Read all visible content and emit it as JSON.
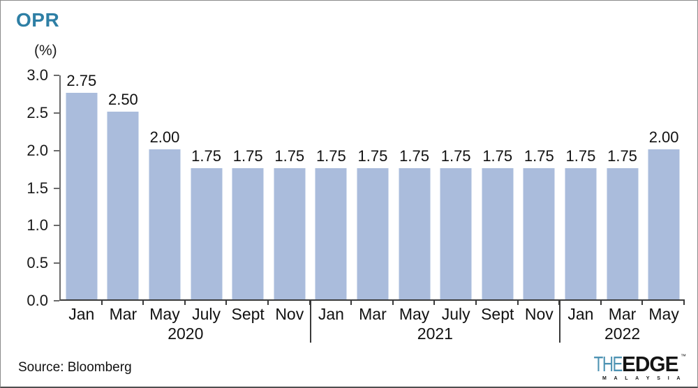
{
  "header": {
    "title": "OPR",
    "unit_label": "(%)"
  },
  "footer": {
    "source": "Source: Bloomberg",
    "logo": {
      "the": "THE",
      "edge": "EDGE",
      "trademark": "™",
      "malaysia": "M A L A Y S I A"
    }
  },
  "colors": {
    "title": "#2e7fa5",
    "bar": "#aabcdc",
    "axis": "#6b6b6b",
    "baseline": "#3a3a3a",
    "text": "#1a1a1a",
    "logo_the": "#4e93b3",
    "logo_edge": "#141414",
    "frame_border": "#8b8b8b"
  },
  "chart_data": {
    "type": "bar",
    "title": "OPR",
    "ylabel": "(%)",
    "xlabel": "",
    "categories": [
      "Jan",
      "Mar",
      "May",
      "July",
      "Sept",
      "Nov",
      "Jan",
      "Mar",
      "May",
      "July",
      "Sept",
      "Nov",
      "Jan",
      "Mar",
      "May"
    ],
    "values": [
      2.75,
      2.5,
      2.0,
      1.75,
      1.75,
      1.75,
      1.75,
      1.75,
      1.75,
      1.75,
      1.75,
      1.75,
      1.75,
      1.75,
      2.0
    ],
    "value_labels": [
      "2.75",
      "2.50",
      "2.00",
      "1.75",
      "1.75",
      "1.75",
      "1.75",
      "1.75",
      "1.75",
      "1.75",
      "1.75",
      "1.75",
      "1.75",
      "1.75",
      "2.00"
    ],
    "groups": [
      {
        "label": "2020",
        "count": 6
      },
      {
        "label": "2021",
        "count": 6
      },
      {
        "label": "2022",
        "count": 3
      }
    ],
    "ylim": [
      0,
      3.0
    ],
    "ytick_labels": [
      "3.0",
      "2.5",
      "2.0",
      "1.5",
      "1.0",
      "0.5",
      "0.0"
    ],
    "grid": false,
    "legend": false,
    "data_labels": true,
    "bar_color": "#aabcdc"
  }
}
